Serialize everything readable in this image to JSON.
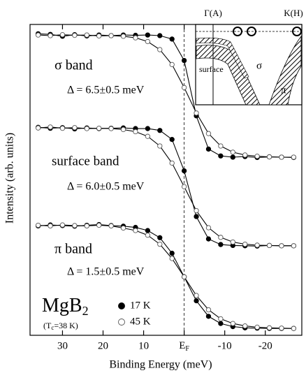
{
  "chart_data": {
    "type": "line",
    "x_label": "Binding Energy (meV)",
    "y_label": "Intensity (arb. units)",
    "xlim": [
      38,
      -29
    ],
    "ylim": [
      0,
      10
    ],
    "xticks": [
      30,
      20,
      10,
      {
        "value": 0,
        "label": "E",
        "sub": "F"
      },
      -10,
      -20
    ],
    "x": [
      36,
      33,
      30,
      27,
      24,
      21,
      18,
      15,
      12,
      9,
      6,
      3,
      0,
      -3,
      -6,
      -9,
      -12,
      -15,
      -18,
      -21,
      -24,
      -27
    ],
    "panels": [
      {
        "label": "σ band",
        "gap": "Δ = 6.5±0.5 meV",
        "series": [
          {
            "marker": "filled",
            "values": [
              9.7,
              9.68,
              9.62,
              9.67,
              9.63,
              9.66,
              9.64,
              9.66,
              9.65,
              9.66,
              9.64,
              9.53,
              8.84,
              7.06,
              5.99,
              5.77,
              5.73,
              5.75,
              5.72,
              5.74,
              5.73,
              5.72
            ]
          },
          {
            "marker": "open",
            "values": [
              9.66,
              9.64,
              9.67,
              9.65,
              9.66,
              9.63,
              9.64,
              9.62,
              9.57,
              9.45,
              9.19,
              8.71,
              7.97,
              7.15,
              6.49,
              6.09,
              5.89,
              5.8,
              5.76,
              5.74,
              5.73,
              5.73
            ]
          }
        ]
      },
      {
        "label": "surface band",
        "gap": "Δ = 6.0±0.5 meV",
        "series": [
          {
            "marker": "filled",
            "values": [
              6.69,
              6.66,
              6.68,
              6.64,
              6.67,
              6.65,
              6.66,
              6.67,
              6.65,
              6.65,
              6.59,
              6.3,
              5.29,
              3.82,
              3.1,
              2.92,
              2.89,
              2.88,
              2.87,
              2.89,
              2.88,
              2.88
            ]
          },
          {
            "marker": "open",
            "values": [
              6.67,
              6.7,
              6.66,
              6.68,
              6.65,
              6.66,
              6.65,
              6.62,
              6.55,
              6.4,
              6.09,
              5.54,
              4.78,
              4.01,
              3.46,
              3.15,
              3.0,
              2.93,
              2.9,
              2.89,
              2.88,
              2.88
            ]
          }
        ]
      },
      {
        "label": "π band",
        "gap": "Δ = 1.5±0.5 meV",
        "series": [
          {
            "marker": "filled",
            "values": [
              3.52,
              3.55,
              3.53,
              3.51,
              3.54,
              3.56,
              3.53,
              3.51,
              3.47,
              3.37,
              3.14,
              2.64,
              1.88,
              1.11,
              0.61,
              0.38,
              0.28,
              0.24,
              0.23,
              0.22,
              0.22,
              0.22
            ]
          },
          {
            "marker": "open",
            "values": [
              3.54,
              3.52,
              3.55,
              3.53,
              3.52,
              3.54,
              3.52,
              3.45,
              3.37,
              3.22,
              2.93,
              2.47,
              1.88,
              1.28,
              0.82,
              0.53,
              0.38,
              0.3,
              0.26,
              0.24,
              0.23,
              0.22
            ]
          }
        ]
      }
    ],
    "legend": [
      {
        "label": "17 K",
        "marker": "filled"
      },
      {
        "label": "45 K",
        "marker": "open"
      }
    ],
    "compound": {
      "base": "MgB",
      "sub": "2"
    },
    "tc": {
      "pre": "(T",
      "sub": "c",
      "post": "=38 K)"
    },
    "inset": {
      "gamma": "Γ(A)",
      "k": "K(H)",
      "sigma": "σ",
      "pi": "π",
      "surface": "surface"
    }
  }
}
